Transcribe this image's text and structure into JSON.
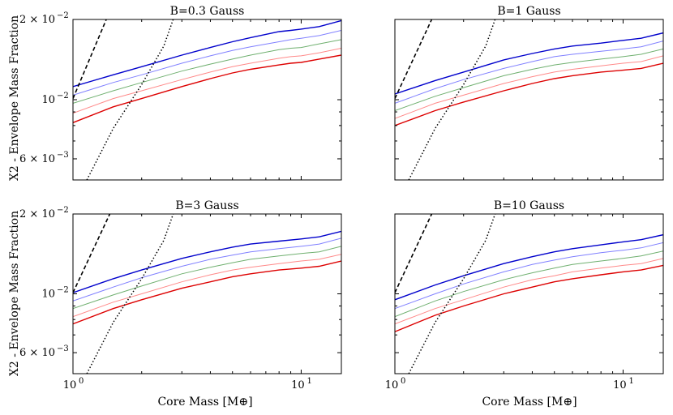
{
  "figure": {
    "ylabel": "X2 - Envelope Mass Fraction",
    "xlabel": "Core Mass [M⊕]",
    "xaxis": {
      "scale": "log",
      "range": [
        1,
        15
      ],
      "major_ticks": [
        {
          "value": 1,
          "base": "10",
          "exp": "0"
        },
        {
          "value": 10,
          "base": "10",
          "exp": "1"
        }
      ]
    },
    "yaxis": {
      "scale": "log",
      "range": [
        0.005,
        0.02
      ],
      "major_ticks": [
        {
          "value": 0.02,
          "mant": "2 × 10",
          "exp": "−2"
        },
        {
          "value": 0.01,
          "mant": "10",
          "exp": "−2"
        },
        {
          "value": 0.006,
          "mant": "6 × 10",
          "exp": "−3"
        }
      ]
    }
  },
  "chart_data": [
    {
      "type": "line",
      "title": "B=0.3 Gauss",
      "x": [
        1,
        1.5,
        2,
        3,
        4,
        5,
        6,
        8,
        9,
        10,
        12,
        15
      ],
      "series": [
        {
          "name": "blue",
          "color": "#0000cc",
          "width": 1.4,
          "values": [
            0.0112,
            0.0124,
            0.0133,
            0.0147,
            0.0157,
            0.0165,
            0.0171,
            0.018,
            0.0182,
            0.0184,
            0.0188,
            0.0198
          ]
        },
        {
          "name": "lightblue",
          "color": "#8080ff",
          "width": 1.0,
          "values": [
            0.0104,
            0.0116,
            0.0124,
            0.0137,
            0.0146,
            0.0153,
            0.0158,
            0.0165,
            0.0168,
            0.017,
            0.0174,
            0.0182
          ]
        },
        {
          "name": "green",
          "color": "#70b070",
          "width": 1.0,
          "values": [
            0.0097,
            0.0108,
            0.0116,
            0.0128,
            0.0136,
            0.0142,
            0.0147,
            0.0154,
            0.0156,
            0.0157,
            0.0162,
            0.0168
          ]
        },
        {
          "name": "pink",
          "color": "#ff8a8a",
          "width": 1.0,
          "values": [
            0.0089,
            0.0101,
            0.0108,
            0.0119,
            0.0127,
            0.0133,
            0.0137,
            0.0143,
            0.0145,
            0.0146,
            0.015,
            0.0156
          ]
        },
        {
          "name": "red",
          "color": "#dd0000",
          "width": 1.4,
          "values": [
            0.0082,
            0.0094,
            0.0101,
            0.0112,
            0.012,
            0.0126,
            0.013,
            0.0135,
            0.0137,
            0.0138,
            0.0142,
            0.0147
          ]
        }
      ],
      "dashed": {
        "x": [
          1,
          1.4
        ],
        "y": [
          0.0101,
          0.02
        ]
      },
      "dotted": {
        "x": [
          1.15,
          1.5,
          2,
          2.5,
          2.75
        ],
        "y": [
          0.005,
          0.0078,
          0.0114,
          0.0159,
          0.02
        ]
      }
    },
    {
      "type": "line",
      "title": "B=1 Gauss",
      "x": [
        1,
        1.5,
        2,
        3,
        4,
        5,
        6,
        8,
        10,
        12,
        15
      ],
      "series": [
        {
          "name": "blue",
          "color": "#0000cc",
          "width": 1.4,
          "values": [
            0.0105,
            0.0118,
            0.0127,
            0.0141,
            0.0149,
            0.0155,
            0.0159,
            0.0163,
            0.0167,
            0.017,
            0.0178
          ]
        },
        {
          "name": "lightblue",
          "color": "#8080ff",
          "width": 1.0,
          "values": [
            0.0097,
            0.011,
            0.0119,
            0.0131,
            0.0139,
            0.0145,
            0.0148,
            0.0152,
            0.0155,
            0.0158,
            0.0166
          ]
        },
        {
          "name": "green",
          "color": "#70b070",
          "width": 1.0,
          "values": [
            0.0091,
            0.0103,
            0.0111,
            0.0123,
            0.013,
            0.0135,
            0.0138,
            0.0142,
            0.0145,
            0.0148,
            0.0155
          ]
        },
        {
          "name": "pink",
          "color": "#ff8a8a",
          "width": 1.0,
          "values": [
            0.0085,
            0.0097,
            0.0104,
            0.0115,
            0.0122,
            0.0127,
            0.013,
            0.0134,
            0.0137,
            0.0139,
            0.0146
          ]
        },
        {
          "name": "red",
          "color": "#dd0000",
          "width": 1.4,
          "values": [
            0.008,
            0.0091,
            0.0098,
            0.0108,
            0.0115,
            0.012,
            0.0123,
            0.0127,
            0.0129,
            0.0131,
            0.0137
          ]
        }
      ],
      "dashed": {
        "x": [
          1,
          1.45
        ],
        "y": [
          0.0101,
          0.02
        ]
      },
      "dotted": {
        "x": [
          1.15,
          1.5,
          2,
          2.5,
          2.75
        ],
        "y": [
          0.005,
          0.0078,
          0.0114,
          0.0159,
          0.02
        ]
      }
    },
    {
      "type": "line",
      "title": "B=3 Gauss",
      "x": [
        1,
        1.5,
        2,
        3,
        4,
        5,
        6,
        8,
        10,
        12,
        15
      ],
      "series": [
        {
          "name": "blue",
          "color": "#0000cc",
          "width": 1.4,
          "values": [
            0.0101,
            0.0114,
            0.0123,
            0.0136,
            0.0144,
            0.015,
            0.0154,
            0.0158,
            0.0161,
            0.0164,
            0.0172
          ]
        },
        {
          "name": "lightblue",
          "color": "#8080ff",
          "width": 1.0,
          "values": [
            0.0094,
            0.0106,
            0.0115,
            0.0127,
            0.0135,
            0.014,
            0.0144,
            0.0148,
            0.0151,
            0.0154,
            0.0162
          ]
        },
        {
          "name": "green",
          "color": "#70b070",
          "width": 1.0,
          "values": [
            0.0088,
            0.0099,
            0.0107,
            0.0119,
            0.0126,
            0.0131,
            0.0135,
            0.0139,
            0.0142,
            0.0144,
            0.0151
          ]
        },
        {
          "name": "pink",
          "color": "#ff8a8a",
          "width": 1.0,
          "values": [
            0.0082,
            0.0093,
            0.01,
            0.0111,
            0.0118,
            0.0123,
            0.0126,
            0.013,
            0.0133,
            0.0135,
            0.0141
          ]
        },
        {
          "name": "red",
          "color": "#dd0000",
          "width": 1.4,
          "values": [
            0.0077,
            0.0088,
            0.0095,
            0.0105,
            0.0111,
            0.0116,
            0.0119,
            0.0123,
            0.0125,
            0.0127,
            0.0133
          ]
        }
      ],
      "dashed": {
        "x": [
          1,
          1.45
        ],
        "y": [
          0.0101,
          0.02
        ]
      },
      "dotted": {
        "x": [
          1.15,
          1.5,
          2,
          2.5,
          2.75
        ],
        "y": [
          0.005,
          0.0078,
          0.0114,
          0.0159,
          0.02
        ]
      }
    },
    {
      "type": "line",
      "title": "B=10 Gauss",
      "x": [
        1,
        1.5,
        2,
        3,
        4,
        5,
        6,
        8,
        10,
        12,
        15
      ],
      "series": [
        {
          "name": "blue",
          "color": "#0000cc",
          "width": 1.4,
          "values": [
            0.0095,
            0.0108,
            0.0117,
            0.013,
            0.0138,
            0.0144,
            0.0148,
            0.0153,
            0.0157,
            0.016,
            0.0167
          ]
        },
        {
          "name": "lightblue",
          "color": "#8080ff",
          "width": 1.0,
          "values": [
            0.0088,
            0.01,
            0.0109,
            0.0121,
            0.0129,
            0.0134,
            0.0138,
            0.0143,
            0.0146,
            0.0149,
            0.0156
          ]
        },
        {
          "name": "green",
          "color": "#70b070",
          "width": 1.0,
          "values": [
            0.0082,
            0.0094,
            0.0102,
            0.0113,
            0.012,
            0.0125,
            0.0129,
            0.0133,
            0.0136,
            0.0139,
            0.0145
          ]
        },
        {
          "name": "pink",
          "color": "#ff8a8a",
          "width": 1.0,
          "values": [
            0.0077,
            0.0088,
            0.0095,
            0.0106,
            0.0113,
            0.0117,
            0.0121,
            0.0125,
            0.0128,
            0.013,
            0.0136
          ]
        },
        {
          "name": "red",
          "color": "#dd0000",
          "width": 1.4,
          "values": [
            0.0072,
            0.0083,
            0.009,
            0.01,
            0.0106,
            0.0111,
            0.0114,
            0.0118,
            0.0121,
            0.0123,
            0.0128
          ]
        }
      ],
      "dashed": {
        "x": [
          1,
          1.45
        ],
        "y": [
          0.0101,
          0.02
        ]
      },
      "dotted": {
        "x": [
          1.15,
          1.5,
          2,
          2.5,
          2.75
        ],
        "y": [
          0.005,
          0.0078,
          0.0114,
          0.0159,
          0.02
        ]
      }
    }
  ]
}
